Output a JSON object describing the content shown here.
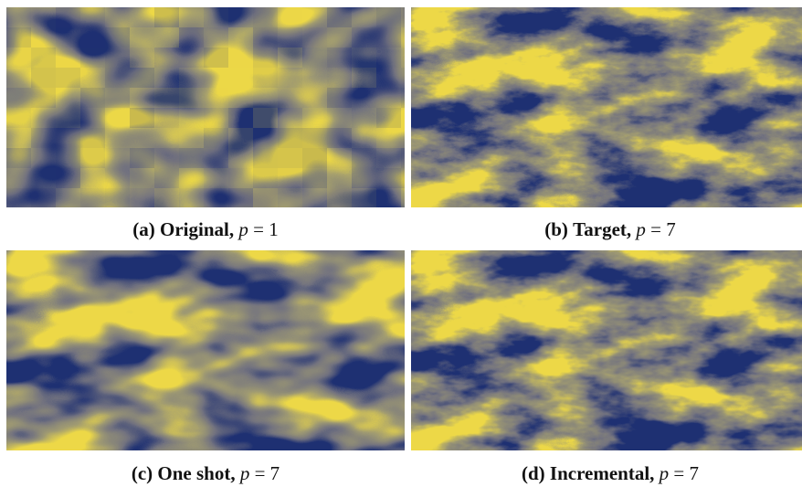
{
  "panels": [
    {
      "label": "(a)",
      "title": "Original,",
      "var": "p",
      "relation": "=",
      "value": 1
    },
    {
      "label": "(b)",
      "title": "Target,",
      "var": "p",
      "relation": "=",
      "value": 7
    },
    {
      "label": "(c)",
      "title": "One shot,",
      "var": "p",
      "relation": "=",
      "value": 7
    },
    {
      "label": "(d)",
      "title": "Incremental,",
      "var": "p",
      "relation": "=",
      "value": 7
    }
  ]
}
